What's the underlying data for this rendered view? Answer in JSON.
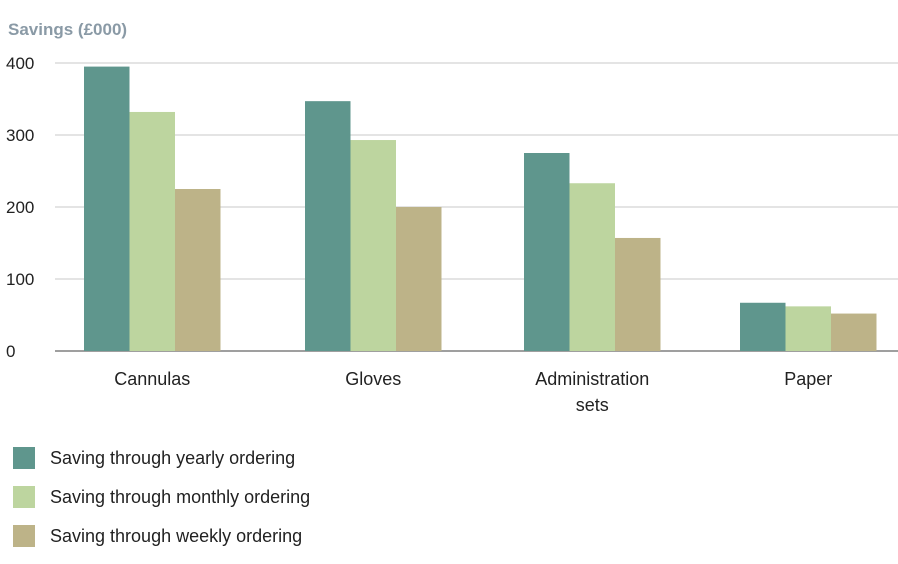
{
  "chart_data": {
    "type": "bar",
    "title": "Savings (£000)",
    "categories": [
      "Cannulas",
      "Gloves",
      "Administration sets",
      "Paper"
    ],
    "category_lines": [
      [
        "Cannulas"
      ],
      [
        "Gloves"
      ],
      [
        "Administration",
        "sets"
      ],
      [
        "Paper"
      ]
    ],
    "series": [
      {
        "name": "Saving through yearly ordering",
        "values": [
          395,
          347,
          275,
          67
        ],
        "color": "#5f968d"
      },
      {
        "name": "Saving through monthly ordering",
        "values": [
          332,
          293,
          233,
          62
        ],
        "color": "#bdd59f"
      },
      {
        "name": "Saving through weekly ordering",
        "values": [
          225,
          200,
          157,
          52
        ],
        "color": "#bdb388"
      }
    ],
    "ylim": [
      0,
      400
    ],
    "yticks": [
      0,
      100,
      200,
      300,
      400
    ],
    "grid": true,
    "legend_position": "bottom",
    "colors": {
      "title": "#8a9aa6",
      "grid": "#c8c8c8",
      "axis": "#666666",
      "text": "#222222"
    }
  }
}
